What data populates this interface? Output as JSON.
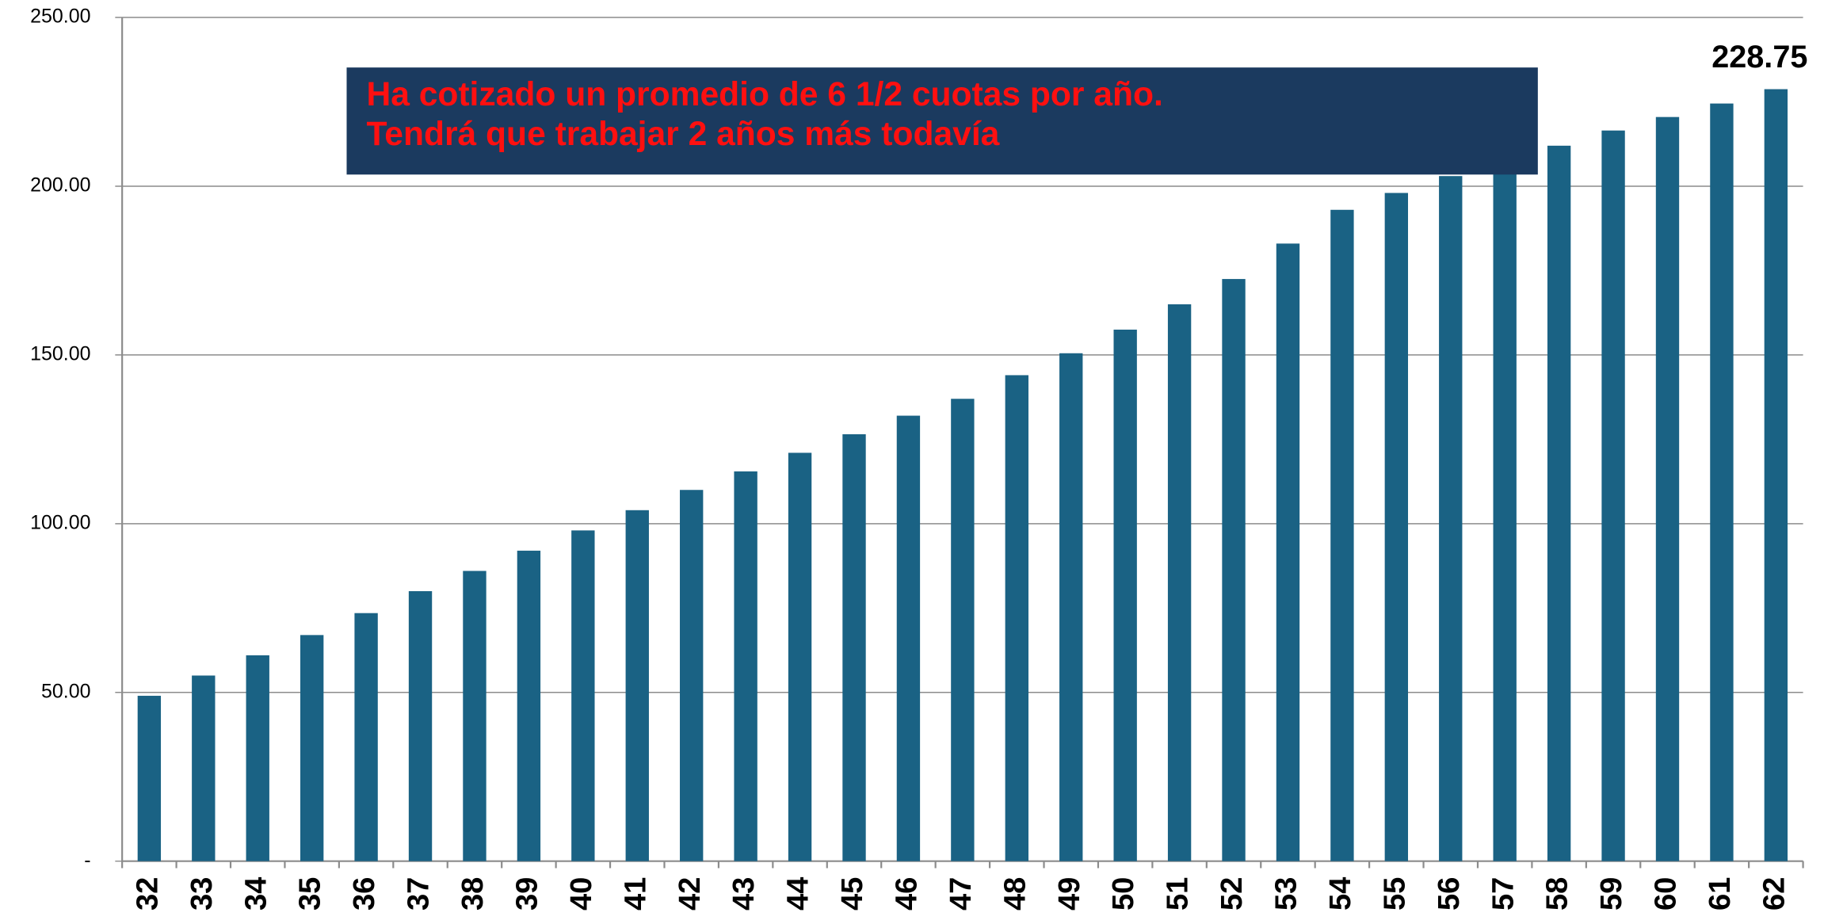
{
  "chart_data": {
    "type": "bar",
    "annotation": [
      "Ha cotizado un promedio de 6 1/2 cuotas por año.",
      "Tendrá que trabajar 2 años más todavía"
    ],
    "categories": [
      "32",
      "33",
      "34",
      "35",
      "36",
      "37",
      "38",
      "39",
      "40",
      "41",
      "42",
      "43",
      "44",
      "45",
      "46",
      "47",
      "48",
      "49",
      "50",
      "51",
      "52",
      "53",
      "54",
      "55",
      "56",
      "57",
      "58",
      "59",
      "60",
      "61",
      "62"
    ],
    "values": [
      49,
      55,
      61,
      67,
      73.5,
      80,
      86,
      92,
      98,
      104,
      110,
      115.5,
      121,
      126.5,
      132,
      137,
      144,
      150.5,
      157.5,
      165,
      172.5,
      183,
      193,
      198,
      203,
      207,
      212,
      216.5,
      220.5,
      224.5,
      228.75
    ],
    "color": "#1a6284",
    "ylim": [
      0,
      250
    ],
    "yticks": [
      {
        "value": 0,
        "label": "-"
      },
      {
        "value": 50,
        "label": "50.00"
      },
      {
        "value": 100,
        "label": "100.00"
      },
      {
        "value": 150,
        "label": "150.00"
      },
      {
        "value": 200,
        "label": "200.00"
      },
      {
        "value": 250,
        "label": "250.00"
      }
    ],
    "grid": true
  }
}
